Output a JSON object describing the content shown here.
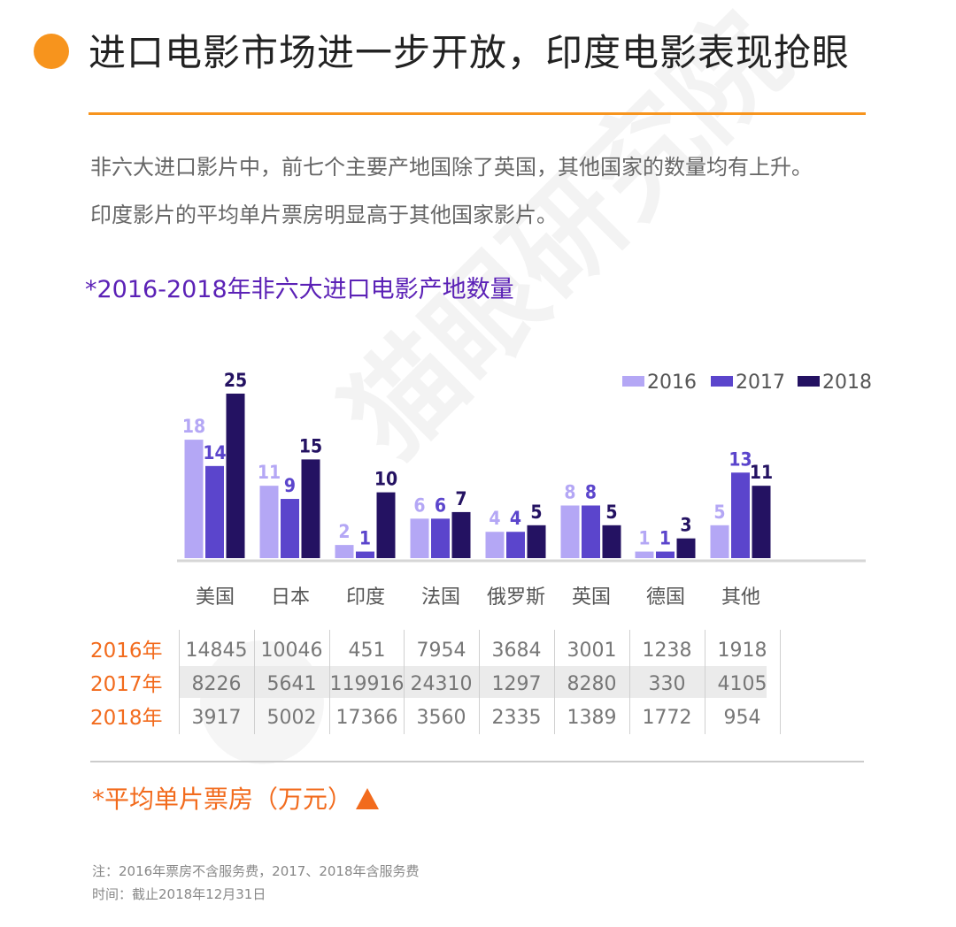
{
  "title": "进口电影市场进一步开放，印度电影表现抢眼",
  "description": [
    "非六大进口影片中，前七个主要产地国除了英国，其他国家的数量均有上升。",
    "印度影片的平均单片票房明显高于其他国家影片。"
  ],
  "colors": {
    "accent": "#f7941d",
    "s2016": "#b4a7f5",
    "s2017": "#5b45cc",
    "s2018": "#241262"
  },
  "chart_data": {
    "type": "bar",
    "title": "*2016-2018年非六大进口电影产地数量",
    "categories": [
      "美国",
      "日本",
      "印度",
      "法国",
      "俄罗斯",
      "英国",
      "德国",
      "其他"
    ],
    "series": [
      {
        "name": "2016",
        "color": "#b4a7f5",
        "values": [
          18,
          11,
          2,
          6,
          4,
          8,
          1,
          5
        ]
      },
      {
        "name": "2017",
        "color": "#5b45cc",
        "values": [
          14,
          9,
          1,
          6,
          4,
          8,
          1,
          13
        ]
      },
      {
        "name": "2018",
        "color": "#241262",
        "values": [
          25,
          15,
          10,
          7,
          5,
          5,
          3,
          11
        ]
      }
    ],
    "ylim": [
      0,
      25
    ],
    "legend": "top-right"
  },
  "box_office": {
    "title": "*平均单片票房（万元）",
    "rows": [
      {
        "label": "2016年",
        "values": [
          "14845",
          "10046",
          "451",
          "7954",
          "3684",
          "3001",
          "1238",
          "1918"
        ]
      },
      {
        "label": "2017年",
        "values": [
          "8226",
          "5641",
          "119916",
          "24310",
          "1297",
          "8280",
          "330",
          "4105"
        ]
      },
      {
        "label": "2018年",
        "values": [
          "3917",
          "5002",
          "17366",
          "3560",
          "2335",
          "1389",
          "1772",
          "954"
        ]
      }
    ]
  },
  "notes": [
    "注：2016年票房不含服务费，2017、2018年含服务费",
    "时间：截止2018年12月31日"
  ],
  "watermark": "猫眼研究院"
}
